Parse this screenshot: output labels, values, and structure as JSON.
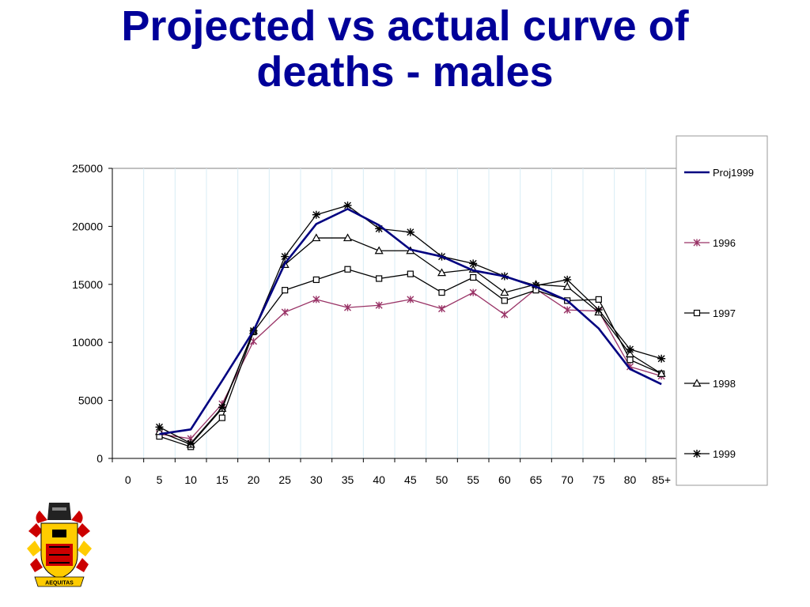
{
  "title_lines": [
    "Projected vs actual curve of",
    "deaths - males"
  ],
  "chart_data": {
    "type": "line",
    "title": "Projected vs actual curve of deaths - males",
    "xlabel": "",
    "ylabel": "",
    "categories": [
      "0",
      "5",
      "10",
      "15",
      "20",
      "25",
      "30",
      "35",
      "40",
      "45",
      "50",
      "55",
      "60",
      "65",
      "70",
      "75",
      "80",
      "85+"
    ],
    "ylim": [
      0,
      25000
    ],
    "yticks": [
      0,
      5000,
      10000,
      15000,
      20000,
      25000
    ],
    "grid": "vertical",
    "legend": "right",
    "series": [
      {
        "name": "Proj1999",
        "color": "#000080",
        "marker": "none",
        "values": [
          null,
          2100,
          2500,
          6700,
          11000,
          16800,
          20200,
          21500,
          20100,
          18000,
          17400,
          16200,
          15700,
          14800,
          13600,
          11200,
          7700,
          6400
        ]
      },
      {
        "name": "1996",
        "color": "#993366",
        "marker": "asterisk",
        "values": [
          null,
          2100,
          1700,
          4700,
          10100,
          12600,
          13700,
          13000,
          13200,
          13700,
          12900,
          14300,
          12400,
          14600,
          12800,
          12700,
          7900,
          7100
        ]
      },
      {
        "name": "1997",
        "color": "#000000",
        "marker": "square",
        "values": [
          null,
          1900,
          1000,
          3500,
          10900,
          14500,
          15400,
          16300,
          15500,
          15900,
          14300,
          15600,
          13600,
          14500,
          13600,
          13700,
          8500,
          7300
        ]
      },
      {
        "name": "1998",
        "color": "#000000",
        "marker": "triangle",
        "values": [
          null,
          2300,
          1200,
          4300,
          11000,
          16700,
          19000,
          19000,
          17900,
          17900,
          16000,
          16300,
          14300,
          15000,
          14800,
          12600,
          9000,
          7300
        ]
      },
      {
        "name": "1999",
        "color": "#000000",
        "marker": "star",
        "values": [
          null,
          2700,
          1300,
          4400,
          11000,
          17400,
          21000,
          21800,
          19800,
          19500,
          17400,
          16800,
          15700,
          14900,
          15400,
          12800,
          9400,
          8600
        ]
      }
    ]
  },
  "crest": {
    "motto": "AEQUITAS",
    "colors": {
      "red": "#cc0000",
      "gold": "#ffcc00",
      "black": "#000000"
    }
  }
}
